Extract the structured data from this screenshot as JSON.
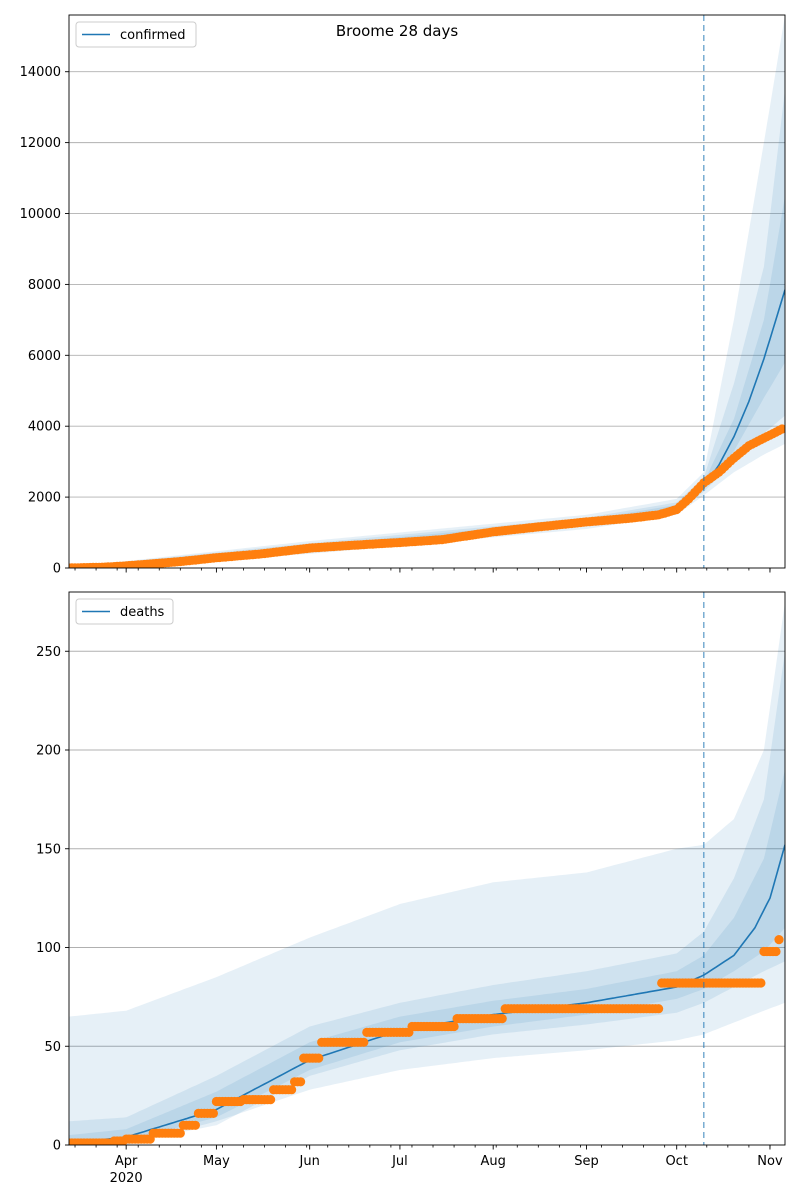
{
  "title": "Broome 28 days",
  "colors": {
    "model": "#1f77b4",
    "observed": "#ff7f0e",
    "band": "#1f77b4",
    "grid": "#b0b0b0",
    "forecast_line": "#1f77b4"
  },
  "x_axis": {
    "start": "2020-03-13",
    "end": "2020-11-06",
    "forecast_start": "2020-10-10",
    "month_ticks": [
      {
        "date": "2020-04-01",
        "label": "Apr",
        "sublabel": "2020"
      },
      {
        "date": "2020-05-01",
        "label": "May",
        "sublabel": ""
      },
      {
        "date": "2020-06-01",
        "label": "Jun",
        "sublabel": ""
      },
      {
        "date": "2020-07-01",
        "label": "Jul",
        "sublabel": ""
      },
      {
        "date": "2020-08-01",
        "label": "Aug",
        "sublabel": ""
      },
      {
        "date": "2020-09-01",
        "label": "Sep",
        "sublabel": ""
      },
      {
        "date": "2020-10-01",
        "label": "Oct",
        "sublabel": ""
      },
      {
        "date": "2020-11-01",
        "label": "Nov",
        "sublabel": ""
      }
    ]
  },
  "chart_data": [
    {
      "type": "line",
      "title": "Broome 28 days",
      "legend": "confirmed",
      "legend_position": "top-left",
      "grid": "horizontal",
      "ylim": [
        0,
        15600
      ],
      "yticks": [
        0,
        2000,
        4000,
        6000,
        8000,
        10000,
        12000,
        14000
      ],
      "observed": [
        [
          "2020-03-13",
          0
        ],
        [
          "2020-03-25",
          25
        ],
        [
          "2020-04-01",
          60
        ],
        [
          "2020-04-10",
          120
        ],
        [
          "2020-04-20",
          190
        ],
        [
          "2020-05-01",
          290
        ],
        [
          "2020-05-15",
          390
        ],
        [
          "2020-06-01",
          560
        ],
        [
          "2020-06-15",
          640
        ],
        [
          "2020-07-01",
          720
        ],
        [
          "2020-07-15",
          800
        ],
        [
          "2020-08-01",
          1020
        ],
        [
          "2020-08-15",
          1150
        ],
        [
          "2020-09-01",
          1300
        ],
        [
          "2020-09-15",
          1400
        ],
        [
          "2020-09-25",
          1500
        ],
        [
          "2020-10-01",
          1650
        ],
        [
          "2020-10-05",
          1950
        ],
        [
          "2020-10-10",
          2400
        ],
        [
          "2020-10-15",
          2700
        ],
        [
          "2020-10-20",
          3100
        ],
        [
          "2020-10-25",
          3450
        ],
        [
          "2020-11-01",
          3750
        ],
        [
          "2020-11-05",
          3920
        ]
      ],
      "model": [
        [
          "2020-03-13",
          0
        ],
        [
          "2020-04-01",
          60
        ],
        [
          "2020-05-01",
          300
        ],
        [
          "2020-06-01",
          580
        ],
        [
          "2020-07-01",
          750
        ],
        [
          "2020-08-01",
          1030
        ],
        [
          "2020-09-01",
          1300
        ],
        [
          "2020-09-25",
          1500
        ],
        [
          "2020-10-01",
          1700
        ],
        [
          "2020-10-10",
          2300
        ],
        [
          "2020-10-15",
          2900
        ],
        [
          "2020-10-20",
          3700
        ],
        [
          "2020-10-25",
          4700
        ],
        [
          "2020-10-30",
          5900
        ],
        [
          "2020-11-06",
          7850
        ]
      ],
      "bands": [
        [
          [
            "2020-03-13",
            0,
            20
          ],
          [
            "2020-06-01",
            400,
            760
          ],
          [
            "2020-09-01",
            1100,
            1500
          ],
          [
            "2020-10-01",
            1500,
            1950
          ],
          [
            "2020-10-10",
            2050,
            2700
          ],
          [
            "2020-10-20",
            2700,
            7000
          ],
          [
            "2020-10-30",
            3200,
            12000
          ],
          [
            "2020-11-06",
            3500,
            15600
          ]
        ],
        [
          [
            "2020-03-13",
            0,
            15
          ],
          [
            "2020-06-01",
            460,
            700
          ],
          [
            "2020-09-01",
            1180,
            1420
          ],
          [
            "2020-10-01",
            1580,
            1850
          ],
          [
            "2020-10-10",
            2150,
            2550
          ],
          [
            "2020-10-20",
            3000,
            5200
          ],
          [
            "2020-10-30",
            3800,
            8500
          ],
          [
            "2020-11-06",
            4300,
            13500
          ]
        ],
        [
          [
            "2020-03-13",
            0,
            10
          ],
          [
            "2020-06-01",
            520,
            640
          ],
          [
            "2020-09-01",
            1240,
            1360
          ],
          [
            "2020-10-01",
            1630,
            1780
          ],
          [
            "2020-10-10",
            2220,
            2420
          ],
          [
            "2020-10-20",
            3300,
            4200
          ],
          [
            "2020-10-30",
            4800,
            7000
          ],
          [
            "2020-11-06",
            5800,
            10500
          ]
        ]
      ]
    },
    {
      "type": "line",
      "title": "",
      "legend": "deaths",
      "legend_position": "top-left",
      "grid": "horizontal",
      "ylim": [
        0,
        280
      ],
      "yticks": [
        0,
        50,
        100,
        150,
        200,
        250
      ],
      "observed": [
        [
          "2020-03-13",
          1
        ],
        [
          "2020-03-28",
          2
        ],
        [
          "2020-04-01",
          3
        ],
        [
          "2020-04-10",
          6
        ],
        [
          "2020-04-20",
          10
        ],
        [
          "2020-04-25",
          16
        ],
        [
          "2020-05-01",
          22
        ],
        [
          "2020-05-10",
          23
        ],
        [
          "2020-05-20",
          28
        ],
        [
          "2020-05-27",
          32
        ],
        [
          "2020-05-30",
          44
        ],
        [
          "2020-06-05",
          52
        ],
        [
          "2020-06-20",
          57
        ],
        [
          "2020-07-05",
          60
        ],
        [
          "2020-07-20",
          64
        ],
        [
          "2020-08-05",
          69
        ],
        [
          "2020-09-25",
          69
        ],
        [
          "2020-09-26",
          82
        ],
        [
          "2020-10-29",
          82
        ],
        [
          "2020-10-30",
          98
        ],
        [
          "2020-11-03",
          98
        ],
        [
          "2020-11-04",
          104
        ]
      ],
      "model": [
        [
          "2020-03-13",
          1
        ],
        [
          "2020-04-01",
          4
        ],
        [
          "2020-05-01",
          18
        ],
        [
          "2020-06-01",
          43
        ],
        [
          "2020-07-01",
          58
        ],
        [
          "2020-08-01",
          66
        ],
        [
          "2020-09-01",
          72
        ],
        [
          "2020-10-01",
          80
        ],
        [
          "2020-10-10",
          86
        ],
        [
          "2020-10-20",
          96
        ],
        [
          "2020-10-27",
          110
        ],
        [
          "2020-11-01",
          125
        ],
        [
          "2020-11-06",
          152
        ]
      ],
      "bands": [
        [
          [
            "2020-03-13",
            0,
            65
          ],
          [
            "2020-04-01",
            0,
            68
          ],
          [
            "2020-05-01",
            12,
            85
          ],
          [
            "2020-06-01",
            28,
            105
          ],
          [
            "2020-07-01",
            38,
            122
          ],
          [
            "2020-08-01",
            44,
            133
          ],
          [
            "2020-09-01",
            48,
            138
          ],
          [
            "2020-10-01",
            53,
            150
          ],
          [
            "2020-10-10",
            56,
            152
          ],
          [
            "2020-10-20",
            62,
            165
          ],
          [
            "2020-10-30",
            68,
            200
          ],
          [
            "2020-11-06",
            72,
            275
          ]
        ],
        [
          [
            "2020-03-13",
            0,
            12
          ],
          [
            "2020-04-01",
            1,
            14
          ],
          [
            "2020-05-01",
            10,
            35
          ],
          [
            "2020-06-01",
            35,
            60
          ],
          [
            "2020-07-01",
            48,
            72
          ],
          [
            "2020-08-01",
            56,
            81
          ],
          [
            "2020-09-01",
            61,
            88
          ],
          [
            "2020-10-01",
            67,
            97
          ],
          [
            "2020-10-10",
            72,
            108
          ],
          [
            "2020-10-20",
            80,
            135
          ],
          [
            "2020-10-30",
            88,
            175
          ],
          [
            "2020-11-06",
            93,
            250
          ]
        ],
        [
          [
            "2020-03-13",
            0,
            5
          ],
          [
            "2020-04-01",
            2,
            8
          ],
          [
            "2020-05-01",
            14,
            27
          ],
          [
            "2020-06-01",
            38,
            52
          ],
          [
            "2020-07-01",
            52,
            65
          ],
          [
            "2020-08-01",
            60,
            73
          ],
          [
            "2020-09-01",
            66,
            79
          ],
          [
            "2020-10-01",
            74,
            88
          ],
          [
            "2020-10-10",
            79,
            96
          ],
          [
            "2020-10-20",
            88,
            115
          ],
          [
            "2020-10-30",
            98,
            145
          ],
          [
            "2020-11-06",
            110,
            190
          ]
        ]
      ]
    }
  ]
}
